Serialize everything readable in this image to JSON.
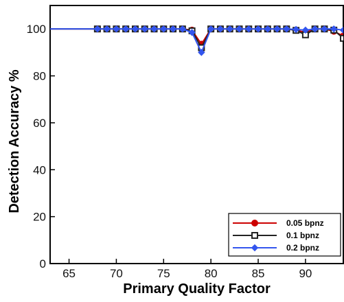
{
  "chart_data": {
    "type": "line",
    "title": "",
    "xlabel": "Primary Quality Factor",
    "ylabel": "Detection Accuracy %",
    "xlim": [
      63,
      94
    ],
    "ylim": [
      0,
      110
    ],
    "xticks": [
      65,
      70,
      75,
      80,
      85,
      90
    ],
    "yticks": [
      0,
      20,
      40,
      60,
      80,
      100
    ],
    "x_tick_labels": [
      "65",
      "70",
      "75",
      "80",
      "85",
      "90"
    ],
    "y_tick_labels": [
      "0",
      "20",
      "40",
      "60",
      "80",
      "100"
    ],
    "legend_position": "bottom-right",
    "grid": false,
    "series": [
      {
        "name": "0.05 bpnz",
        "color": "#cc0000",
        "marker": "circle-filled",
        "x": [
          63,
          68,
          69,
          70,
          71,
          72,
          73,
          74,
          75,
          76,
          77,
          78,
          79,
          80,
          81,
          82,
          83,
          84,
          85,
          86,
          87,
          88,
          89,
          90,
          91,
          92,
          93,
          94
        ],
        "y": [
          100,
          100,
          100,
          100,
          100,
          100,
          100,
          100,
          100,
          100,
          100,
          99.5,
          93.5,
          100,
          100,
          100,
          100,
          100,
          100,
          100,
          100,
          100,
          99.5,
          98.5,
          100,
          100,
          99,
          97
        ]
      },
      {
        "name": "0.1 bpnz",
        "color": "#222222",
        "marker": "square-open",
        "x": [
          63,
          68,
          69,
          70,
          71,
          72,
          73,
          74,
          75,
          76,
          77,
          78,
          79,
          80,
          81,
          82,
          83,
          84,
          85,
          86,
          87,
          88,
          89,
          90,
          91,
          92,
          93,
          94
        ],
        "y": [
          100,
          100,
          100,
          100,
          100,
          100,
          100,
          100,
          100,
          100,
          100,
          99.2,
          92,
          100,
          100,
          100,
          100,
          100,
          100,
          100,
          100,
          100,
          99.4,
          97.5,
          100,
          100,
          99.5,
          96
        ]
      },
      {
        "name": "0.2 bpnz",
        "color": "#3355ee",
        "marker": "diamond-filled",
        "x": [
          63,
          68,
          69,
          70,
          71,
          72,
          73,
          74,
          75,
          76,
          77,
          78,
          79,
          80,
          81,
          82,
          83,
          84,
          85,
          86,
          87,
          88,
          89,
          90,
          91,
          92,
          93,
          94
        ],
        "y": [
          100,
          100,
          100,
          100,
          100,
          100,
          100,
          100,
          100,
          100,
          100,
          98.5,
          90,
          100,
          100,
          100,
          100,
          100,
          100,
          100,
          100,
          100,
          99.8,
          99.5,
          100,
          100,
          100,
          99.5
        ]
      }
    ]
  }
}
